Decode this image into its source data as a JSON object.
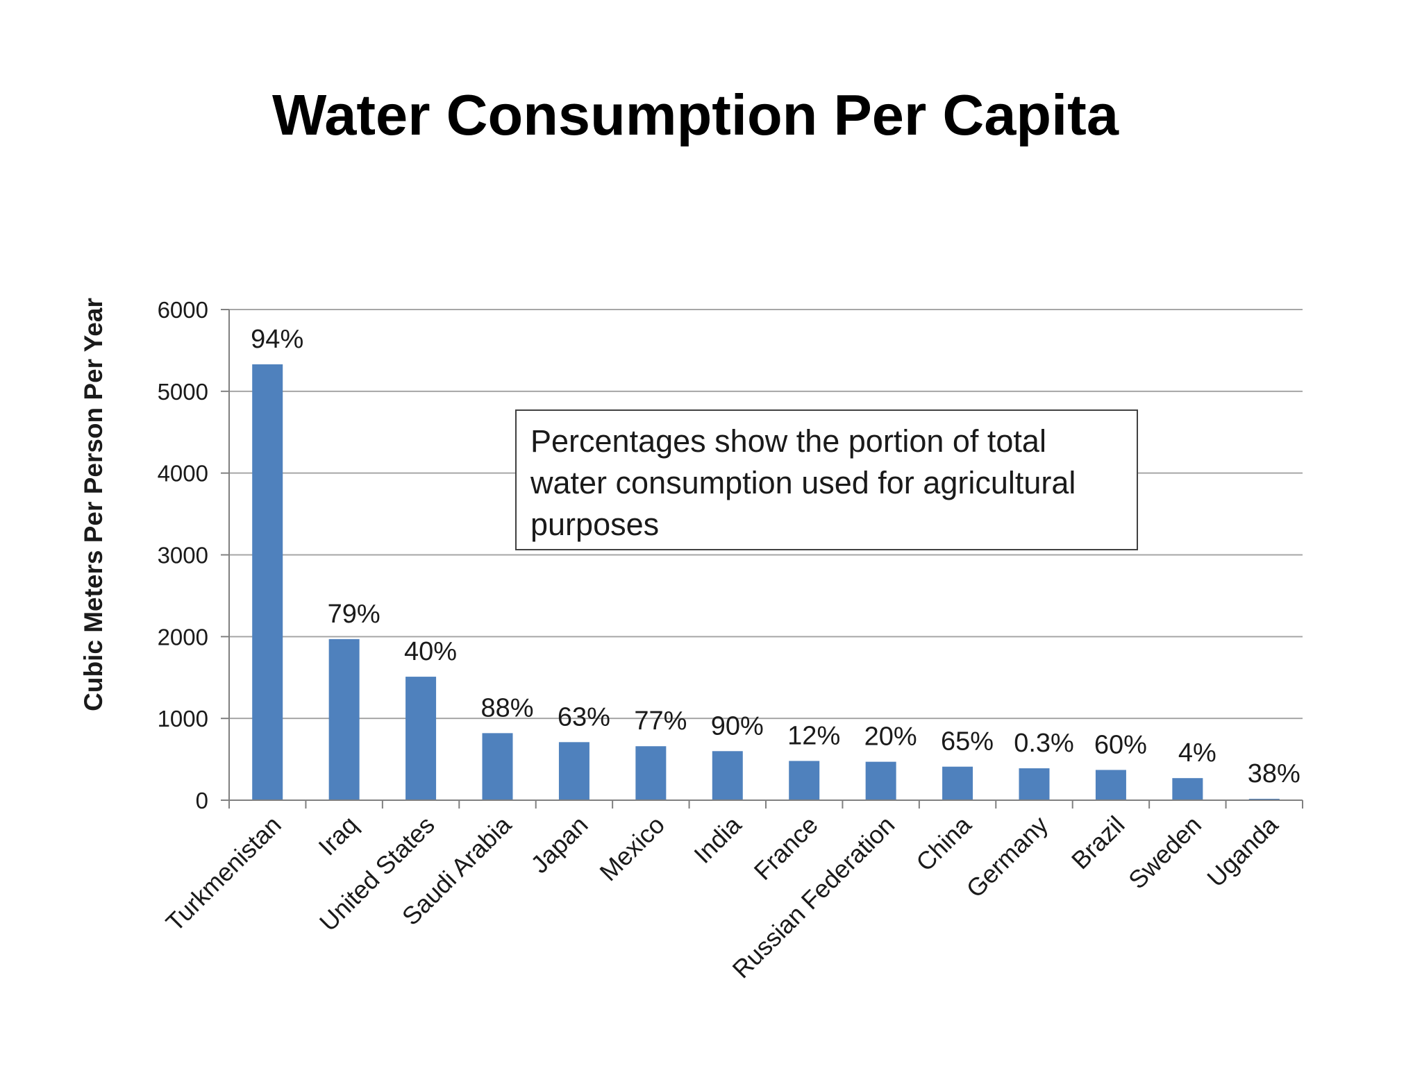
{
  "title": "Water Consumption Per Capita",
  "note": "Percentages show the portion of total water consumption used for agricultural purposes",
  "colors": {
    "bar": "#4f81bd",
    "grid": "#a6a6a6",
    "axis": "#808080"
  },
  "chart_data": {
    "type": "bar",
    "title": "",
    "xlabel": "",
    "ylabel": "Cubic Meters Per Person Per Year",
    "ylim": [
      0,
      6000
    ],
    "yticks": [
      0,
      1000,
      2000,
      3000,
      4000,
      5000,
      6000
    ],
    "grid": true,
    "legend": "none",
    "categories": [
      "Turkmenistan",
      "Iraq",
      "United States",
      "Saudi Arabia",
      "Japan",
      "Mexico",
      "India",
      "France",
      "Russian Federation",
      "China",
      "Germany",
      "Brazil",
      "Sweden",
      "Uganda"
    ],
    "values": [
      5330,
      1970,
      1510,
      820,
      710,
      660,
      600,
      480,
      470,
      410,
      390,
      370,
      270,
      10
    ],
    "data_labels": [
      "94%",
      "79%",
      "40%",
      "88%",
      "63%",
      "77%",
      "90%",
      "12%",
      "20%",
      "65%",
      "0.3%",
      "60%",
      "4%",
      "38%"
    ]
  }
}
